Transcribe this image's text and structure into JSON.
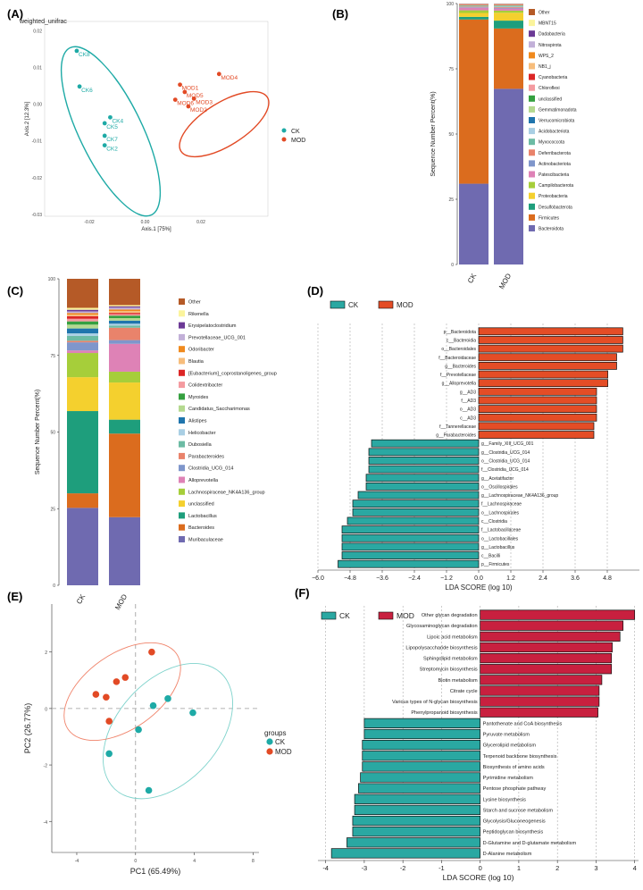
{
  "panels": [
    "(A)",
    "(B)",
    "(C)",
    "(D)",
    "(E)",
    "(F)"
  ],
  "colors": {
    "ck": "#1eaaa6",
    "mod": "#e24a25",
    "ck_bar": "#2aa8a2",
    "mod_bar": "#e44d26",
    "mod_bar_f": "#c8203f"
  },
  "chart_data": [
    {
      "id": "A",
      "type": "scatter",
      "title": "weighted_unifrac",
      "xlabel": "Axis.1  [75%]",
      "ylabel": "Axis.2 [12.3%]",
      "xlim": [
        -0.036,
        0.044
      ],
      "ylim": [
        -0.0305,
        0.0225
      ],
      "xticks": [
        -0.02,
        0.0,
        0.02
      ],
      "xticklabels": [
        "-0.02",
        "0.00",
        "0.02"
      ],
      "yticks": [
        -0.03,
        -0.02,
        -0.01,
        0.0,
        0.01,
        0.02
      ],
      "yticklabels": [
        "-0.03",
        "-0.02",
        "-0.01",
        "0.00",
        "0.01",
        "0.02"
      ],
      "legend": [
        "CK",
        "MOD"
      ],
      "points": [
        {
          "label": "CK8",
          "group": "CK",
          "x": -0.0245,
          "y": 0.0145
        },
        {
          "label": "CK6",
          "group": "CK",
          "x": -0.0235,
          "y": 0.0048
        },
        {
          "label": "CK4",
          "group": "CK",
          "x": -0.0125,
          "y": -0.0036
        },
        {
          "label": "CK5",
          "group": "CK",
          "x": -0.0145,
          "y": -0.0052
        },
        {
          "label": "CK7",
          "group": "CK",
          "x": -0.0145,
          "y": -0.0086
        },
        {
          "label": "CK2",
          "group": "CK",
          "x": -0.0145,
          "y": -0.0112
        },
        {
          "label": "MOD4",
          "group": "MOD",
          "x": 0.0265,
          "y": 0.0082
        },
        {
          "label": "MOD1",
          "group": "MOD",
          "x": 0.0125,
          "y": 0.0053
        },
        {
          "label": "MOD5",
          "group": "MOD",
          "x": 0.0142,
          "y": 0.0033
        },
        {
          "label": "MOD3",
          "group": "MOD",
          "x": 0.0175,
          "y": 0.0015
        },
        {
          "label": "MOD6",
          "group": "MOD",
          "x": 0.0108,
          "y": 0.0012
        },
        {
          "label": "MOD2",
          "group": "MOD",
          "x": 0.0155,
          "y": -0.0006
        }
      ]
    },
    {
      "id": "B",
      "type": "bar",
      "stacked": true,
      "ylabel": "Sequence Number Percent(%)",
      "categories": [
        "CK",
        "MOD"
      ],
      "ylim": [
        0,
        100
      ],
      "yticks": [
        0,
        25,
        50,
        75,
        100
      ],
      "series": [
        {
          "name": "Bacteroidota",
          "color": "#6f6ab0",
          "values": [
            31,
            67
          ]
        },
        {
          "name": "Firmicutes",
          "color": "#db6c1e",
          "values": [
            63,
            23
          ]
        },
        {
          "name": "Desulfobacterota",
          "color": "#1e9e7c",
          "values": [
            1.0,
            3.0
          ]
        },
        {
          "name": "Proteobacteria",
          "color": "#f4d02e",
          "values": [
            1.5,
            3.0
          ]
        },
        {
          "name": "Campilobacterota",
          "color": "#a6ce3a",
          "values": [
            1.0,
            0.8
          ]
        },
        {
          "name": "Patescibacteria",
          "color": "#de82b6",
          "values": [
            1.0,
            0.8
          ]
        },
        {
          "name": "Actinobacteriota",
          "color": "#7f96cb",
          "values": [
            0.2,
            0.3
          ]
        },
        {
          "name": "Deferribacterota",
          "color": "#e9836b",
          "values": [
            0.2,
            0.3
          ]
        },
        {
          "name": "Myxococcota",
          "color": "#6cbba4",
          "values": [
            0.1,
            0.2
          ]
        },
        {
          "name": "Acidobacteriota",
          "color": "#a9cfe4",
          "values": [
            0.1,
            0.1
          ]
        },
        {
          "name": "Verrucomicrobiota",
          "color": "#1f75ad",
          "values": [
            0.1,
            0.1
          ]
        },
        {
          "name": "Gemmatimonadota",
          "color": "#b4d98f",
          "values": [
            0.1,
            0.1
          ]
        },
        {
          "name": "unclassified",
          "color": "#35a040",
          "values": [
            0.1,
            0.1
          ]
        },
        {
          "name": "Chloroflexi",
          "color": "#f49ba0",
          "values": [
            0.1,
            0.1
          ]
        },
        {
          "name": "Cyanobacteria",
          "color": "#dc2626",
          "values": [
            0.1,
            0.1
          ]
        },
        {
          "name": "NB1_j",
          "color": "#f7bd7c",
          "values": [
            0.1,
            0.1
          ]
        },
        {
          "name": "WPS_2",
          "color": "#f08a1e",
          "values": [
            0.1,
            0.1
          ]
        },
        {
          "name": "Nitrospirota",
          "color": "#c2b0d8",
          "values": [
            0.1,
            0.1
          ]
        },
        {
          "name": "Dadabacteria",
          "color": "#6c3a96",
          "values": [
            0.05,
            0.05
          ]
        },
        {
          "name": "MBNT15",
          "color": "#fbf49c",
          "values": [
            0.05,
            0.05
          ]
        },
        {
          "name": "Other",
          "color": "#b55a27",
          "values": [
            0.1,
            0.1
          ]
        }
      ]
    },
    {
      "id": "C",
      "type": "bar",
      "stacked": true,
      "ylabel": "Sequence Number Percent(%)",
      "categories": [
        "CK",
        "MOD"
      ],
      "ylim": [
        0,
        100
      ],
      "yticks": [
        0,
        25,
        50,
        75,
        100
      ],
      "series": [
        {
          "name": "Muribaculaceae",
          "color": "#6f6ab0",
          "values": [
            24,
            22
          ]
        },
        {
          "name": "Bacteroides",
          "color": "#db6c1e",
          "values": [
            4.5,
            27
          ]
        },
        {
          "name": "Lactobacillus",
          "color": "#1e9e7c",
          "values": [
            25.5,
            4.5
          ]
        },
        {
          "name": "unclassified",
          "color": "#f4d02e",
          "values": [
            10.5,
            12
          ]
        },
        {
          "name": "Lachnospiraceae_NK4A136_group",
          "color": "#a6ce3a",
          "values": [
            7.5,
            3.5
          ]
        },
        {
          "name": "Alloprevotella",
          "color": "#de82b6",
          "values": [
            0.8,
            9
          ]
        },
        {
          "name": "Clostridia_UCG_014",
          "color": "#7f96cb",
          "values": [
            2.5,
            1.2
          ]
        },
        {
          "name": "Parabacteroides",
          "color": "#e9836b",
          "values": [
            0.5,
            4
          ]
        },
        {
          "name": "Dubosiella",
          "color": "#6cbba4",
          "values": [
            1.5,
            0.7
          ]
        },
        {
          "name": "Helicobacter",
          "color": "#a9cfe4",
          "values": [
            0.8,
            0.6
          ]
        },
        {
          "name": "Alistipes",
          "color": "#1f75ad",
          "values": [
            1.5,
            1.0
          ]
        },
        {
          "name": "Candidatus_Saccharimonas",
          "color": "#b4d98f",
          "values": [
            1.2,
            0.8
          ]
        },
        {
          "name": "Myroides",
          "color": "#35a040",
          "values": [
            1.0,
            0.8
          ]
        },
        {
          "name": "Colidextribacter",
          "color": "#f49ba0",
          "values": [
            0.8,
            0.5
          ]
        },
        {
          "name": "[Eubacterium]_coprostanoligenes_group",
          "color": "#dc2626",
          "values": [
            0.8,
            0.4
          ]
        },
        {
          "name": "Blautia",
          "color": "#f7bd7c",
          "values": [
            0.5,
            0.6
          ]
        },
        {
          "name": "Odoribacter",
          "color": "#f08a1e",
          "values": [
            0.5,
            0.5
          ]
        },
        {
          "name": "Prevotellaceae_UCG_001",
          "color": "#c2b0d8",
          "values": [
            0.5,
            0.6
          ]
        },
        {
          "name": "Erysipelatoclostridium",
          "color": "#6c3a96",
          "values": [
            0.5,
            0.4
          ]
        },
        {
          "name": "Rikenella",
          "color": "#fbf49c",
          "values": [
            0.6,
            0.4
          ]
        },
        {
          "name": "Other",
          "color": "#b55a27",
          "values": [
            9.0,
            8.5
          ]
        }
      ]
    },
    {
      "id": "D",
      "type": "bar",
      "orientation": "horizontal",
      "xlabel": "LDA SCORE (log 10)",
      "xlim": [
        -6.0,
        6.0
      ],
      "xticks": [
        -6.0,
        -4.8,
        -3.6,
        -2.4,
        -1.2,
        0.0,
        1.2,
        2.4,
        3.6,
        4.8
      ],
      "xticklabels": [
        "−6.0",
        "−4.8",
        "−3.6",
        "−2.4",
        "−1.2",
        "0.0",
        "1.2",
        "2.4",
        "3.6",
        "4.8"
      ],
      "legend": [
        "CK",
        "MOD"
      ],
      "bars": [
        {
          "label": "p__Bacteroidota",
          "group": "MOD",
          "value": 5.38
        },
        {
          "label": "c__Bacteroidia",
          "group": "MOD",
          "value": 5.38
        },
        {
          "label": "o__Bacteroidales",
          "group": "MOD",
          "value": 5.38
        },
        {
          "label": "f__Bacteroidaceae",
          "group": "MOD",
          "value": 5.15
        },
        {
          "label": "g__Bacteroides",
          "group": "MOD",
          "value": 5.15
        },
        {
          "label": "f__Prevotellaceae",
          "group": "MOD",
          "value": 4.82
        },
        {
          "label": "g__Alloprevotella",
          "group": "MOD",
          "value": 4.82
        },
        {
          "label": "g__AD3",
          "group": "MOD",
          "value": 4.4
        },
        {
          "label": "f__AD3",
          "group": "MOD",
          "value": 4.4
        },
        {
          "label": "o__AD3",
          "group": "MOD",
          "value": 4.4
        },
        {
          "label": "c__AD3",
          "group": "MOD",
          "value": 4.4
        },
        {
          "label": "f__Tannerellaceae",
          "group": "MOD",
          "value": 4.3
        },
        {
          "label": "g__Parabacteroides",
          "group": "MOD",
          "value": 4.3
        },
        {
          "label": "g__Family_XIII_UCG_001",
          "group": "CK",
          "value": -4.0
        },
        {
          "label": "g__Clostridia_UCG_014",
          "group": "CK",
          "value": -4.1
        },
        {
          "label": "o__Clostridia_UCG_014",
          "group": "CK",
          "value": -4.1
        },
        {
          "label": "f__Clostridia_UCG_014",
          "group": "CK",
          "value": -4.1
        },
        {
          "label": "g__Acetatifactor",
          "group": "CK",
          "value": -4.2
        },
        {
          "label": "o__Oscillospirales",
          "group": "CK",
          "value": -4.2
        },
        {
          "label": "g__Lachnospiraceae_NK4A136_group",
          "group": "CK",
          "value": -4.5
        },
        {
          "label": "f__Lachnospiraceae",
          "group": "CK",
          "value": -4.7
        },
        {
          "label": "o__Lachnospirales",
          "group": "CK",
          "value": -4.7
        },
        {
          "label": "c__Clostridia",
          "group": "CK",
          "value": -4.9
        },
        {
          "label": "f__Lactobacillaceae",
          "group": "CK",
          "value": -5.1
        },
        {
          "label": "o__Lactobacillales",
          "group": "CK",
          "value": -5.1
        },
        {
          "label": "g__Lactobacillus",
          "group": "CK",
          "value": -5.1
        },
        {
          "label": "c__Bacilli",
          "group": "CK",
          "value": -5.1
        },
        {
          "label": "p__Firmicutes",
          "group": "CK",
          "value": -5.25
        }
      ]
    },
    {
      "id": "E",
      "type": "scatter",
      "xlabel": "PC1 (65.49%)",
      "ylabel": "PC2 (26.77%)",
      "xlim": [
        -5.7,
        8.4
      ],
      "ylim": [
        -5.1,
        3.7
      ],
      "xticks": [
        -4,
        0,
        4,
        8
      ],
      "yticks": [
        -4,
        -2,
        0,
        2
      ],
      "legend_title": "groups",
      "legend": [
        "CK",
        "MOD"
      ],
      "points": [
        {
          "group": "CK",
          "x": 2.2,
          "y": 0.35
        },
        {
          "group": "CK",
          "x": 1.2,
          "y": 0.1
        },
        {
          "group": "CK",
          "x": 3.9,
          "y": -0.15
        },
        {
          "group": "CK",
          "x": 0.2,
          "y": -0.75
        },
        {
          "group": "CK",
          "x": -1.8,
          "y": -1.6
        },
        {
          "group": "CK",
          "x": 0.9,
          "y": -2.9
        },
        {
          "group": "MOD",
          "x": 1.1,
          "y": 2.0
        },
        {
          "group": "MOD",
          "x": -2.7,
          "y": 0.5
        },
        {
          "group": "MOD",
          "x": -1.3,
          "y": 0.95
        },
        {
          "group": "MOD",
          "x": -0.7,
          "y": 1.1
        },
        {
          "group": "MOD",
          "x": -2.0,
          "y": 0.4
        },
        {
          "group": "MOD",
          "x": -1.8,
          "y": -0.45
        }
      ]
    },
    {
      "id": "F",
      "type": "bar",
      "orientation": "horizontal",
      "xlabel": "LDA SCORE (log 10)",
      "xlim": [
        -4.2,
        4.1
      ],
      "xticks": [
        -4,
        -3,
        -2,
        -1,
        0,
        1,
        2,
        3,
        4
      ],
      "legend": [
        "CK",
        "MOD"
      ],
      "bars": [
        {
          "label": "Other glycan degradation",
          "group": "MOD",
          "value": 4.0
        },
        {
          "label": "Glycosaminoglycan degradation",
          "group": "MOD",
          "value": 3.7
        },
        {
          "label": "Lipoic acid metabolism",
          "group": "MOD",
          "value": 3.62
        },
        {
          "label": "Lipopolysaccharide biosynthesis",
          "group": "MOD",
          "value": 3.42
        },
        {
          "label": "Sphingolipid metabolism",
          "group": "MOD",
          "value": 3.4
        },
        {
          "label": "Streptomycin biosynthesis",
          "group": "MOD",
          "value": 3.4
        },
        {
          "label": "Biotin metabolism",
          "group": "MOD",
          "value": 3.15
        },
        {
          "label": "Citrate cycle",
          "group": "MOD",
          "value": 3.08
        },
        {
          "label": "Various types of N-glycan biosynthesis",
          "group": "MOD",
          "value": 3.08
        },
        {
          "label": "Phenylpropanoid biosynthesis",
          "group": "MOD",
          "value": 3.05
        },
        {
          "label": "Pantothenate and CoA biosynthesis",
          "group": "CK",
          "value": -3.0
        },
        {
          "label": "Pyruvate metabolism",
          "group": "CK",
          "value": -3.0
        },
        {
          "label": "Glycerolipid metabolism",
          "group": "CK",
          "value": -3.05
        },
        {
          "label": "Terpenoid backbone biosynthesis",
          "group": "CK",
          "value": -3.05
        },
        {
          "label": "Biosynthesis of amino acids",
          "group": "CK",
          "value": -3.05
        },
        {
          "label": "Pyrimidine metabolism",
          "group": "CK",
          "value": -3.1
        },
        {
          "label": "Pentose phosphate pathway",
          "group": "CK",
          "value": -3.15
        },
        {
          "label": "Lysine biosynthesis",
          "group": "CK",
          "value": -3.25
        },
        {
          "label": "Starch and sucrose metabolism",
          "group": "CK",
          "value": -3.25
        },
        {
          "label": "Glycolysis/Gluconeogenesis",
          "group": "CK",
          "value": -3.3
        },
        {
          "label": "Peptidoglycan biosynthesis",
          "group": "CK",
          "value": -3.3
        },
        {
          "label": "D-Glutamine and D-glutamate metabolism",
          "group": "CK",
          "value": -3.45
        },
        {
          "label": "D-Alanine metabolism",
          "group": "CK",
          "value": -3.85
        }
      ]
    }
  ]
}
